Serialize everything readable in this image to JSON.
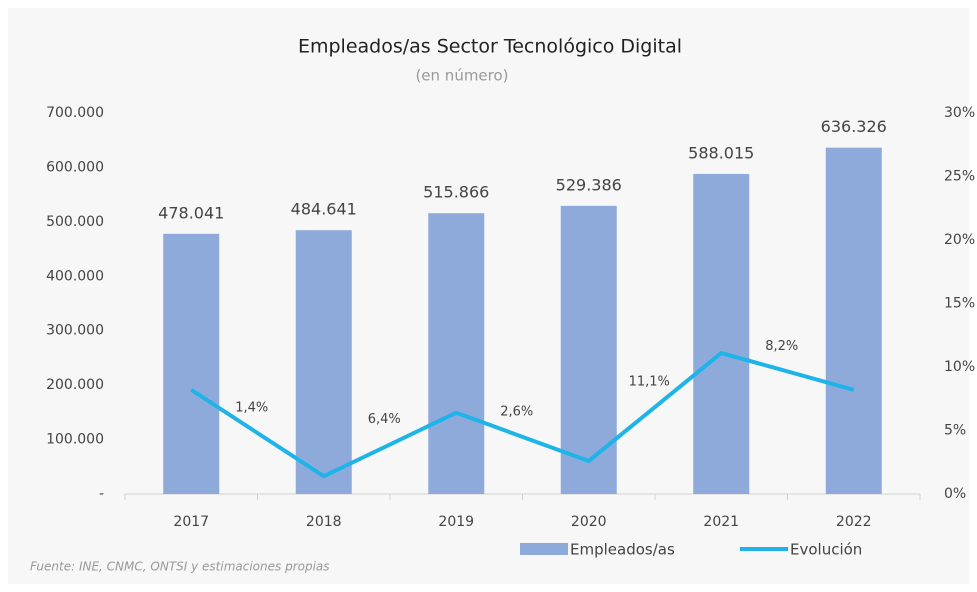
{
  "chart_data": {
    "type": "bar_line",
    "title": "Empleados/as Sector Tecnológico Digital",
    "subtitle": "(en número)",
    "source": "Fuente: INE, CNMC, ONTSI y estimaciones propias",
    "categories": [
      "2017",
      "2018",
      "2019",
      "2020",
      "2021",
      "2022"
    ],
    "series": [
      {
        "name": "Empleados/as",
        "color": "#8eaadb",
        "type": "bar",
        "values": [
          478041,
          484641,
          515866,
          529386,
          588015,
          636326
        ],
        "value_labels": [
          "478.041",
          "484.641",
          "515.866",
          "529.386",
          "588.015",
          "636.326"
        ]
      },
      {
        "name": "Evolución",
        "color": "#1eb4e8",
        "type": "line",
        "axis": "y2",
        "values": [
          8.2,
          1.4,
          6.4,
          2.6,
          11.1,
          8.2
        ],
        "value_labels": [
          null,
          "1,4%",
          "6,4%",
          "2,6%",
          "11,1%",
          "8,2%"
        ]
      }
    ],
    "ylim": [
      0,
      700000
    ],
    "yticks": [
      {
        "value": 0,
        "label": "-"
      },
      {
        "value": 100000,
        "label": "100.000"
      },
      {
        "value": 200000,
        "label": "200.000"
      },
      {
        "value": 300000,
        "label": "300.000"
      },
      {
        "value": 400000,
        "label": "400.000"
      },
      {
        "value": 500000,
        "label": "500.000"
      },
      {
        "value": 600000,
        "label": "600.000"
      },
      {
        "value": 700000,
        "label": "700.000"
      }
    ],
    "y2lim": [
      0,
      30
    ],
    "y2ticks": [
      {
        "value": 0,
        "label": "0%"
      },
      {
        "value": 5,
        "label": "5%"
      },
      {
        "value": 10,
        "label": "10%"
      },
      {
        "value": 15,
        "label": "15%"
      },
      {
        "value": 20,
        "label": "20%"
      },
      {
        "value": 25,
        "label": "25%"
      },
      {
        "value": 30,
        "label": "30%"
      }
    ],
    "grid": false
  }
}
